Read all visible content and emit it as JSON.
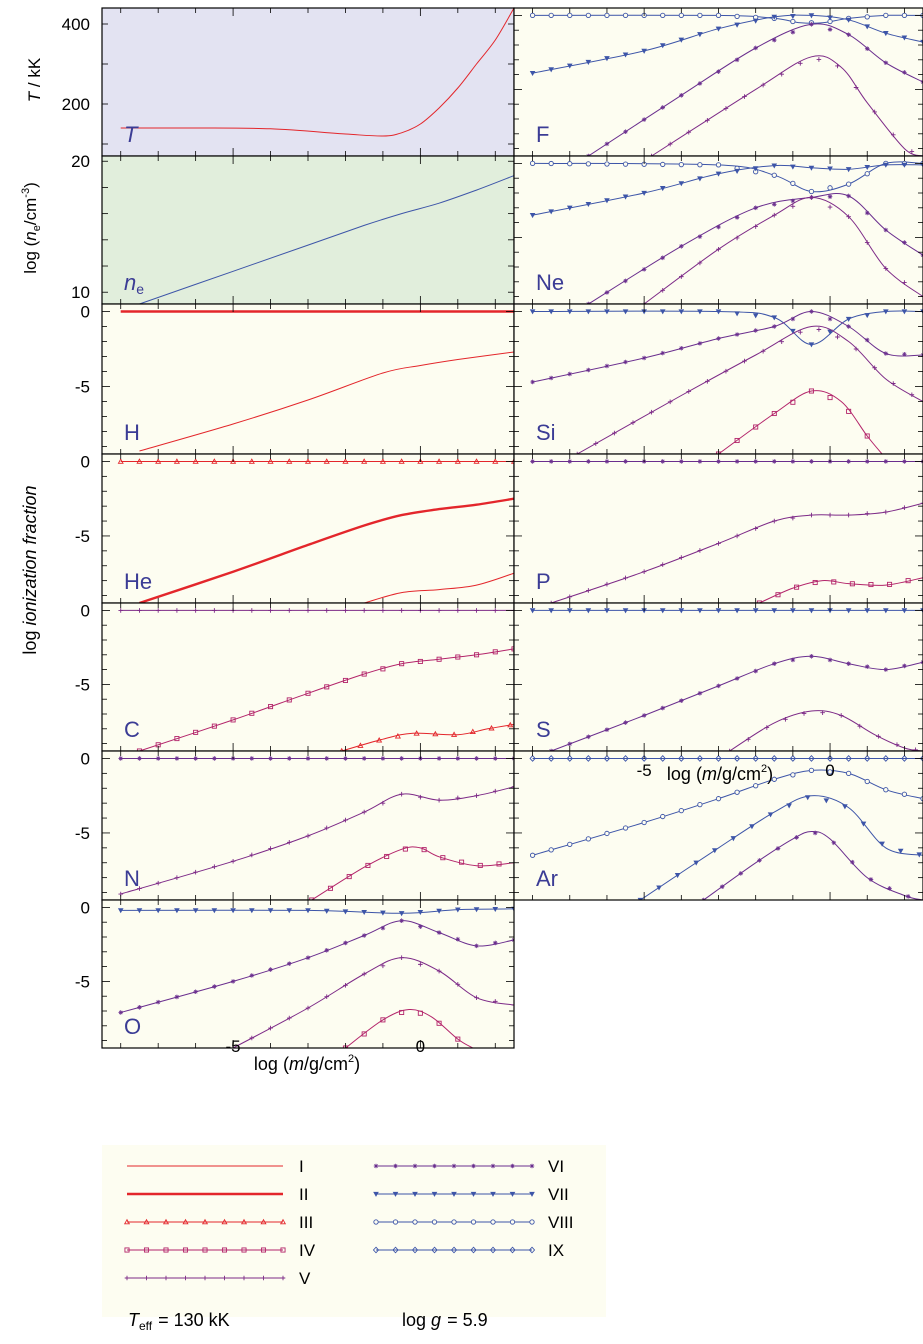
{
  "colors": {
    "bg_T": "#e3e3f2",
    "bg_ne": "#e1eedc",
    "bg_ion": "#fdfdf1",
    "red": "#e3262b",
    "purple": "#7d2a87",
    "blue": "#3d55a8",
    "label": "#3b3c95"
  },
  "footer": {
    "teff": "= 130 kK",
    "teff_sym": "T",
    "teff_sub": "eff",
    "logg": "= 5.9",
    "logg_prefix": "log",
    "logg_sym": "g"
  },
  "legend": [
    {
      "label": "I",
      "color": "#e3262b",
      "width": 1,
      "marker": "none"
    },
    {
      "label": "II",
      "color": "#e3262b",
      "width": 2.4,
      "marker": "none"
    },
    {
      "label": "III",
      "color": "#e3262b",
      "width": 1,
      "marker": "triangle"
    },
    {
      "label": "IV",
      "color": "#b3246a",
      "width": 1,
      "marker": "square"
    },
    {
      "label": "V",
      "color": "#7d2a87",
      "width": 1,
      "marker": "plus"
    },
    {
      "label": "VI",
      "color": "#6a2e8e",
      "width": 1,
      "marker": "star"
    },
    {
      "label": "VII",
      "color": "#3d55a8",
      "width": 1,
      "marker": "down-triangle"
    },
    {
      "label": "VIII",
      "color": "#3d55a8",
      "width": 1,
      "marker": "circle"
    },
    {
      "label": "IX",
      "color": "#3d55a8",
      "width": 1,
      "marker": "diamond"
    }
  ],
  "chart_data": {
    "type": "line",
    "xlabel": "log (m/g/cm²)",
    "xlim": [
      -8.5,
      2.5
    ],
    "xticks": [
      -5,
      0
    ],
    "ylabel_fraction": "log ionization fraction",
    "ylim_fraction": [
      -9.5,
      0.5
    ],
    "yticks_fraction": [
      0,
      -5
    ],
    "panels": [
      {
        "id": "T",
        "label": "T",
        "ylabel": "T / kK",
        "ylim": [
          70,
          440
        ],
        "yticks": [
          200,
          400
        ],
        "series": [
          {
            "ion": "I",
            "x": [
              -8,
              -6,
              -4,
              -2,
              -1,
              -0.5,
              0,
              0.5,
              1,
              1.5,
              2,
              2.5
            ],
            "y": [
              140,
              140,
              138,
              125,
              120,
              128,
              150,
              190,
              240,
              300,
              360,
              440
            ]
          }
        ]
      },
      {
        "id": "ne",
        "label": "n",
        "label_sub": "e",
        "ylabel": "log (n_e/cm^-3)",
        "ylim": [
          9.1,
          20.4
        ],
        "yticks": [
          10,
          20
        ],
        "series": [
          {
            "ion": "I",
            "x": [
              -7.5,
              -5,
              -3,
              -1.5,
              -0.5,
              0.5,
              1.5,
              2.5
            ],
            "y": [
              9.1,
              11.6,
              13.6,
              15.1,
              16.0,
              16.8,
              17.8,
              18.9
            ]
          }
        ]
      },
      {
        "id": "H",
        "label": "H",
        "series": [
          {
            "ion": "II",
            "x": [
              -8,
              2.5
            ],
            "y": [
              0,
              0
            ]
          },
          {
            "ion": "I",
            "x": [
              -7.5,
              -5,
              -3,
              -1,
              0,
              1,
              2.5
            ],
            "y": [
              -9.3,
              -7.5,
              -5.9,
              -4.1,
              -3.6,
              -3.2,
              -2.7
            ]
          }
        ]
      },
      {
        "id": "He",
        "label": "He",
        "series": [
          {
            "ion": "III",
            "x": [
              -8,
              2.5
            ],
            "y": [
              0,
              0
            ]
          },
          {
            "ion": "II",
            "x": [
              -7.5,
              -5,
              -3,
              -1.5,
              -0.5,
              0.5,
              1.5,
              2.5
            ],
            "y": [
              -9.5,
              -7.4,
              -5.6,
              -4.3,
              -3.6,
              -3.2,
              -2.9,
              -2.5
            ]
          },
          {
            "ion": "I",
            "x": [
              -1.5,
              -0.5,
              0.5,
              1.5,
              2.5
            ],
            "y": [
              -9.5,
              -8.8,
              -8.6,
              -8.3,
              -7.5
            ]
          }
        ]
      },
      {
        "id": "C",
        "label": "C",
        "series": [
          {
            "ion": "V",
            "x": [
              -8,
              2.5
            ],
            "y": [
              0,
              0
            ]
          },
          {
            "ion": "IV",
            "x": [
              -7.5,
              -5,
              -3,
              -1.5,
              -0.5,
              0.5,
              1.5,
              2.5
            ],
            "y": [
              -9.5,
              -7.4,
              -5.6,
              -4.3,
              -3.6,
              -3.3,
              -3.0,
              -2.6
            ]
          },
          {
            "ion": "III",
            "x": [
              -2.1,
              -1,
              -0.2,
              1,
              1.8,
              2.5
            ],
            "y": [
              -9.5,
              -8.7,
              -8.3,
              -8.4,
              -8.0,
              -7.7
            ]
          }
        ]
      },
      {
        "id": "N",
        "label": "N",
        "series": [
          {
            "ion": "VI",
            "x": [
              -8,
              2.5
            ],
            "y": [
              0,
              0
            ]
          },
          {
            "ion": "V",
            "x": [
              -8,
              -5,
              -3,
              -1.5,
              -0.5,
              0.5,
              1.5,
              2.5
            ],
            "y": [
              -9.1,
              -6.9,
              -5.2,
              -3.6,
              -2.4,
              -2.8,
              -2.5,
              -1.9
            ]
          },
          {
            "ion": "IV",
            "x": [
              -2.9,
              -1.5,
              -0.5,
              0,
              0.5,
              1.5,
              2.5
            ],
            "y": [
              -9.5,
              -7.3,
              -6.1,
              -6.0,
              -6.6,
              -7.2,
              -7.0
            ]
          }
        ]
      },
      {
        "id": "O",
        "label": "O",
        "series": [
          {
            "ion": "VII",
            "x": [
              -8,
              -3,
              -0.5,
              1,
              2.5
            ],
            "y": [
              -0.2,
              -0.2,
              -0.4,
              -0.15,
              -0.1
            ]
          },
          {
            "ion": "VI",
            "x": [
              -8,
              -5,
              -3,
              -1.5,
              -0.5,
              0.5,
              1.5,
              2.5
            ],
            "y": [
              -7.1,
              -5.0,
              -3.4,
              -1.9,
              -0.9,
              -1.7,
              -2.6,
              -2.2
            ]
          },
          {
            "ion": "V",
            "x": [
              -5,
              -3,
              -1.5,
              -0.5,
              0.5,
              1.5,
              2.5
            ],
            "y": [
              -9.5,
              -6.8,
              -4.5,
              -3.4,
              -4.3,
              -6.1,
              -6.6
            ]
          },
          {
            "ion": "IV",
            "x": [
              -2,
              -1,
              -0.3,
              0.3,
              1.0,
              1.4
            ],
            "y": [
              -9.5,
              -7.6,
              -6.9,
              -7.4,
              -8.9,
              -9.5
            ]
          }
        ]
      },
      {
        "id": "F",
        "label": "F",
        "series": [
          {
            "ion": "VIII",
            "x": [
              -8,
              -3,
              -1.5,
              -0.8,
              -0.2,
              0.5,
              1.5,
              2.5
            ],
            "y": [
              0,
              0,
              -0.2,
              -0.5,
              -0.5,
              -0.2,
              0,
              0
            ]
          },
          {
            "ion": "VII",
            "x": [
              -8,
              -5,
              -3,
              -1.5,
              -0.5,
              0.5,
              1.5,
              2.5
            ],
            "y": [
              -3.9,
              -2.4,
              -0.9,
              -0.1,
              0,
              -0.3,
              -1.2,
              -1.8
            ]
          },
          {
            "ion": "VI",
            "x": [
              -6.5,
              -4,
              -2,
              -0.5,
              0.5,
              1.5,
              2.5
            ],
            "y": [
              -9.5,
              -5.4,
              -2.2,
              -0.6,
              -1.3,
              -3.2,
              -4.5
            ]
          },
          {
            "ion": "V",
            "x": [
              -4.8,
              -2,
              -0.5,
              0.3,
              1.0,
              2.0,
              2.5
            ],
            "y": [
              -9.5,
              -5.0,
              -2.8,
              -3.5,
              -5.9,
              -9.0,
              -9.5
            ]
          }
        ]
      },
      {
        "id": "Ne",
        "label": "Ne",
        "series": [
          {
            "ion": "VIII",
            "x": [
              -8,
              -3,
              -1.5,
              -0.5,
              0.5,
              1.5,
              2.5
            ],
            "y": [
              0,
              -0.1,
              -0.8,
              -1.9,
              -1.4,
              0,
              0
            ]
          },
          {
            "ion": "VII",
            "x": [
              -8,
              -5,
              -3,
              -1.5,
              -0.5,
              0.5,
              1.5,
              2.5
            ],
            "y": [
              -3.5,
              -2.0,
              -0.7,
              -0.15,
              -0.3,
              -0.4,
              -0.1,
              -0.1
            ]
          },
          {
            "ion": "VI",
            "x": [
              -6.5,
              -4,
              -2,
              -0.5,
              0.5,
              1.5,
              2.5
            ],
            "y": [
              -9.5,
              -5.6,
              -3.0,
              -2.3,
              -2.2,
              -4.5,
              -6.2
            ]
          },
          {
            "ion": "V",
            "x": [
              -5,
              -3,
              -1.5,
              -0.5,
              0.5,
              1.5,
              2.5
            ],
            "y": [
              -9.5,
              -5.8,
              -3.5,
              -2.3,
              -3.6,
              -7.1,
              -9.0
            ]
          }
        ]
      },
      {
        "id": "Si",
        "label": "Si",
        "series": [
          {
            "ion": "VII",
            "x": [
              -8,
              -3,
              -1.5,
              -0.5,
              0.5,
              1.5,
              2.5
            ],
            "y": [
              0,
              0,
              -0.4,
              -2.2,
              -0.5,
              0,
              0
            ]
          },
          {
            "ion": "VI",
            "x": [
              -8,
              -5,
              -3,
              -1.5,
              -0.5,
              0.5,
              1.5,
              2.5
            ],
            "y": [
              -4.7,
              -3.1,
              -1.8,
              -1.0,
              0,
              -1.0,
              -2.8,
              -2.9
            ]
          },
          {
            "ion": "V",
            "x": [
              -6.8,
              -4,
              -2,
              -0.5,
              0.5,
              1.5,
              2.5
            ],
            "y": [
              -9.5,
              -5.6,
              -2.9,
              -1.0,
              -2.0,
              -4.5,
              -6.0
            ]
          },
          {
            "ion": "IV",
            "x": [
              -3,
              -1.5,
              -0.5,
              0.3,
              1,
              1.4
            ],
            "y": [
              -9.5,
              -6.8,
              -5.3,
              -6.0,
              -8.3,
              -9.5
            ]
          }
        ]
      },
      {
        "id": "P",
        "label": "P",
        "series": [
          {
            "ion": "VI",
            "x": [
              -8,
              2.5
            ],
            "y": [
              0,
              0
            ]
          },
          {
            "ion": "V",
            "x": [
              -7.5,
              -5,
              -3,
              -1.5,
              -0.5,
              0.5,
              1.5,
              2.5
            ],
            "y": [
              -9.5,
              -7.4,
              -5.5,
              -4.0,
              -3.6,
              -3.6,
              -3.4,
              -2.8
            ]
          },
          {
            "ion": "IV",
            "x": [
              -1.9,
              -1,
              -0.2,
              0.5,
              1.5,
              2.5
            ],
            "y": [
              -9.5,
              -8.5,
              -8.0,
              -8.2,
              -8.3,
              -7.8
            ]
          }
        ]
      },
      {
        "id": "S",
        "label": "S",
        "series": [
          {
            "ion": "VII",
            "x": [
              -8,
              2.5
            ],
            "y": [
              0,
              0
            ]
          },
          {
            "ion": "VI",
            "x": [
              -7.5,
              -5,
              -3,
              -1.5,
              -0.5,
              0.5,
              1.5,
              2.5
            ],
            "y": [
              -9.5,
              -7.1,
              -5.1,
              -3.6,
              -3.1,
              -3.6,
              -4.0,
              -3.5
            ]
          },
          {
            "ion": "V",
            "x": [
              -2.7,
              -1.5,
              -0.5,
              0.3,
              1.2,
              2.0,
              2.5
            ],
            "y": [
              -9.5,
              -7.6,
              -6.8,
              -7.1,
              -8.4,
              -9.3,
              -9.5
            ]
          }
        ]
      },
      {
        "id": "Ar",
        "label": "Ar",
        "series": [
          {
            "ion": "IX",
            "x": [
              -8,
              2.5
            ],
            "y": [
              0,
              0
            ]
          },
          {
            "ion": "VIII",
            "x": [
              -8,
              -5,
              -3,
              -1.5,
              -0.5,
              0.5,
              1.5,
              2.5
            ],
            "y": [
              -6.5,
              -4.3,
              -2.7,
              -1.4,
              -0.8,
              -1.0,
              -2.1,
              -2.7
            ]
          },
          {
            "ion": "VII",
            "x": [
              -5.1,
              -3,
              -1.5,
              -0.5,
              0.5,
              1.5,
              2.5
            ],
            "y": [
              -9.5,
              -6.0,
              -3.6,
              -2.5,
              -3.3,
              -6.0,
              -6.5
            ]
          },
          {
            "ion": "VI",
            "x": [
              -3.4,
              -2,
              -1,
              -0.5,
              0,
              1,
              2,
              2.5
            ],
            "y": [
              -9.5,
              -7.0,
              -5.4,
              -4.9,
              -5.4,
              -8.0,
              -9.2,
              -9.5
            ]
          }
        ]
      }
    ]
  }
}
